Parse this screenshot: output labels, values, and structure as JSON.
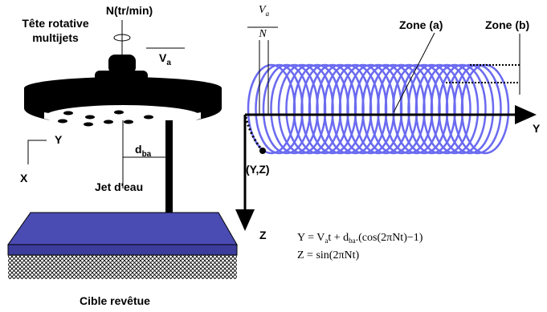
{
  "left": {
    "head_label": [
      "Tête rotative",
      "multijets"
    ],
    "speed": "N(tr/min)",
    "velocity": {
      "main": "V",
      "sub": "a"
    },
    "distance": {
      "main": "d",
      "sub": "ba"
    },
    "axis_y": "Y",
    "axis_x": "X",
    "jet": "Jet d'eau",
    "target": "Cible revêtue"
  },
  "right": {
    "fraction": {
      "num_main": "V",
      "num_sub": "a",
      "den": "N"
    },
    "zone_a": "Zone (a)",
    "zone_b": "Zone (b)",
    "axis_y": "Y",
    "point": "(Y,Z)",
    "axis_z": "Z",
    "equations": [
      [
        "Y = V",
        "a",
        "t + d",
        "ba",
        ".(cos(2πNt)−1)"
      ],
      [
        "Z = sin(2πNt)"
      ]
    ]
  }
}
